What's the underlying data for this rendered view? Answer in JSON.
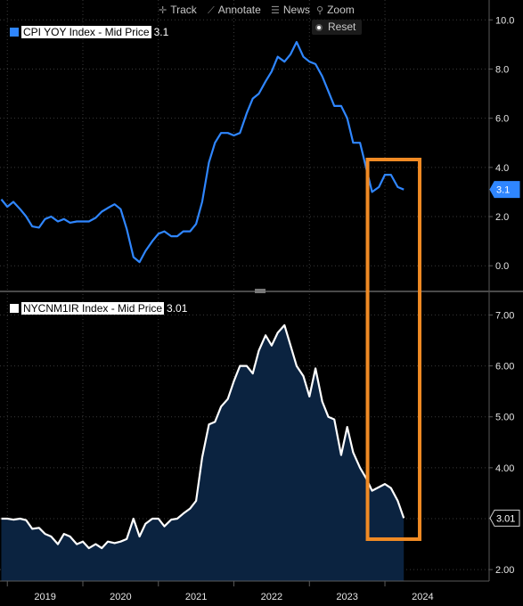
{
  "toolbar": {
    "track_label": "Track",
    "annotate_label": "Annotate",
    "news_label": "News",
    "zoom_label": "Zoom",
    "reset_label": "Reset"
  },
  "colors": {
    "background": "#000000",
    "cpi_line": "#2f86ff",
    "nyc_line": "#ffffff",
    "nyc_fill": "#0b2340",
    "highlight_box": "#f08a24",
    "axis": "#5a5a5a",
    "grid": "#3a3a3a"
  },
  "chart_data": [
    {
      "type": "line",
      "legend_label": "CPI YOY Index - Mid Price",
      "last_value_label": "3.1",
      "ylim": [
        -0.5,
        10.3
      ],
      "yticks": [
        "0.0",
        "2.0",
        "4.0",
        "6.0",
        "8.0",
        "10.0"
      ],
      "grid": true,
      "x": [
        2018.42,
        2018.5,
        2018.58,
        2018.67,
        2018.75,
        2018.83,
        2018.92,
        2019.0,
        2019.08,
        2019.17,
        2019.25,
        2019.33,
        2019.42,
        2019.5,
        2019.58,
        2019.67,
        2019.75,
        2019.83,
        2019.92,
        2020.0,
        2020.08,
        2020.17,
        2020.25,
        2020.33,
        2020.42,
        2020.5,
        2020.58,
        2020.67,
        2020.75,
        2020.83,
        2020.92,
        2021.0,
        2021.08,
        2021.17,
        2021.25,
        2021.33,
        2021.42,
        2021.5,
        2021.58,
        2021.67,
        2021.75,
        2021.83,
        2021.92,
        2022.0,
        2022.08,
        2022.17,
        2022.25,
        2022.33,
        2022.42,
        2022.5,
        2022.58,
        2022.67,
        2022.75,
        2022.83,
        2022.92,
        2023.0,
        2023.08,
        2023.17,
        2023.25,
        2023.33,
        2023.42,
        2023.5,
        2023.58,
        2023.67,
        2023.75
      ],
      "y": [
        2.7,
        2.4,
        2.6,
        2.3,
        2.0,
        1.6,
        1.55,
        1.9,
        2.0,
        1.8,
        1.9,
        1.75,
        1.8,
        1.8,
        1.8,
        1.95,
        2.2,
        2.35,
        2.5,
        2.3,
        1.5,
        0.35,
        0.15,
        0.6,
        1.0,
        1.3,
        1.4,
        1.2,
        1.2,
        1.4,
        1.4,
        1.7,
        2.6,
        4.2,
        5.0,
        5.4,
        5.4,
        5.3,
        5.4,
        6.2,
        6.8,
        7.0,
        7.5,
        7.9,
        8.5,
        8.3,
        8.6,
        9.1,
        8.5,
        8.3,
        8.2,
        7.7,
        7.1,
        6.5,
        6.5,
        6.0,
        5.0,
        5.0,
        4.0,
        3.0,
        3.2,
        3.7,
        3.7,
        3.2,
        3.1
      ]
    },
    {
      "type": "area",
      "legend_label": "NYCNM1IR Index - Mid Price",
      "last_value_label": "3.01",
      "ylim": [
        1.95,
        7.2
      ],
      "yticks": [
        "2.00",
        "3.00",
        "4.00",
        "5.00",
        "6.00",
        "7.00"
      ],
      "grid": true,
      "x": [
        2018.42,
        2018.5,
        2018.58,
        2018.67,
        2018.75,
        2018.83,
        2018.92,
        2019.0,
        2019.08,
        2019.17,
        2019.25,
        2019.33,
        2019.42,
        2019.5,
        2019.58,
        2019.67,
        2019.75,
        2019.83,
        2019.92,
        2020.0,
        2020.08,
        2020.17,
        2020.25,
        2020.33,
        2020.42,
        2020.5,
        2020.58,
        2020.67,
        2020.75,
        2020.83,
        2020.92,
        2021.0,
        2021.08,
        2021.17,
        2021.25,
        2021.33,
        2021.42,
        2021.5,
        2021.58,
        2021.67,
        2021.75,
        2021.83,
        2021.92,
        2022.0,
        2022.08,
        2022.17,
        2022.25,
        2022.33,
        2022.42,
        2022.5,
        2022.58,
        2022.67,
        2022.75,
        2022.83,
        2022.92,
        2023.0,
        2023.08,
        2023.17,
        2023.25,
        2023.33,
        2023.42,
        2023.5,
        2023.58,
        2023.67,
        2023.75
      ],
      "y": [
        3.0,
        3.0,
        2.98,
        3.0,
        2.97,
        2.8,
        2.82,
        2.7,
        2.65,
        2.5,
        2.7,
        2.65,
        2.5,
        2.55,
        2.42,
        2.5,
        2.42,
        2.55,
        2.52,
        2.55,
        2.6,
        3.0,
        2.65,
        2.9,
        3.0,
        3.0,
        2.85,
        2.98,
        3.0,
        3.1,
        3.2,
        3.35,
        4.2,
        4.85,
        4.9,
        5.2,
        5.35,
        5.7,
        6.0,
        6.0,
        5.85,
        6.3,
        6.6,
        6.4,
        6.65,
        6.8,
        6.4,
        6.0,
        5.8,
        5.4,
        5.95,
        5.3,
        5.0,
        4.95,
        4.25,
        4.8,
        4.3,
        4.0,
        3.8,
        3.55,
        3.62,
        3.68,
        3.6,
        3.35,
        3.01
      ]
    }
  ],
  "x_axis": {
    "labels": [
      "2019",
      "2020",
      "2021",
      "2022",
      "2023",
      "2024"
    ],
    "label_positions": [
      2019,
      2020,
      2021,
      2022,
      2023,
      2024
    ],
    "range": [
      2018.45,
      2024.88
    ]
  },
  "highlight_region": {
    "x_range": [
      2023.27,
      2023.96
    ]
  }
}
